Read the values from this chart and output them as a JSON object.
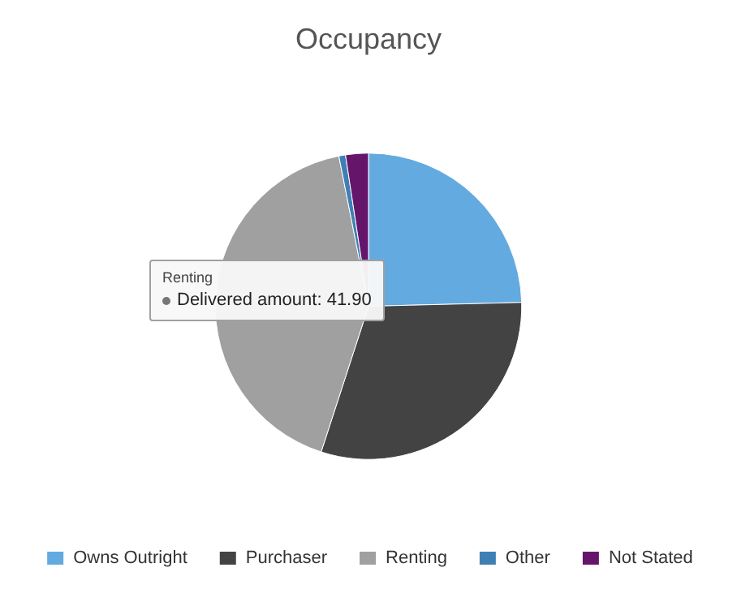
{
  "chart_data": {
    "type": "pie",
    "title": "Occupancy",
    "categories": [
      "Owns Outright",
      "Purchaser",
      "Renting",
      "Other",
      "Not Stated"
    ],
    "values": [
      24.6,
      30.4,
      41.9,
      0.7,
      2.4
    ],
    "colors": [
      "#63aae0",
      "#434343",
      "#a0a0a0",
      "#3f80b4",
      "#66166a"
    ],
    "annotations": [
      "Renting",
      "Delivered amount: 41.90"
    ],
    "legend": "bottom"
  }
}
